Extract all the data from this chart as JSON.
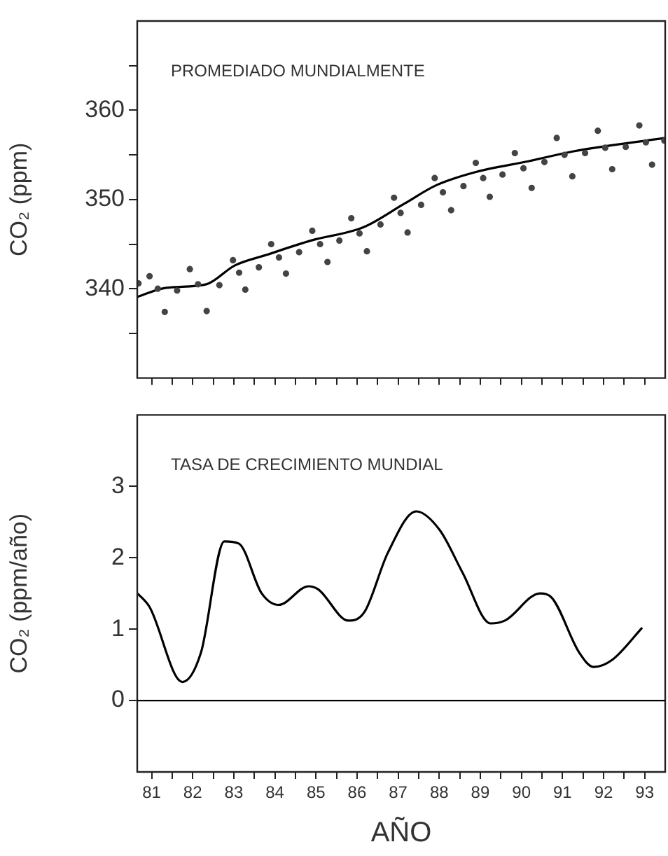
{
  "chart_data": [
    {
      "type": "scatter",
      "ylabel": "CO₂ (ppm)",
      "annotations": [
        "PROMEDIADO MUNDIALMENTE"
      ],
      "tick_labels": "y",
      "grid": false,
      "xlim": [
        80.65,
        93.5
      ],
      "xticks": [
        81,
        {
          "value": 81.5,
          "label": null
        },
        82,
        {
          "value": 82.5,
          "label": null
        },
        83,
        {
          "value": 83.5,
          "label": null
        },
        84,
        {
          "value": 84.5,
          "label": null
        },
        85,
        {
          "value": 85.5,
          "label": null
        },
        86,
        {
          "value": 86.5,
          "label": null
        },
        87,
        {
          "value": 87.5,
          "label": null
        },
        88,
        {
          "value": 88.5,
          "label": null
        },
        89,
        {
          "value": 89.5,
          "label": null
        },
        90,
        {
          "value": 90.5,
          "label": null
        },
        91,
        {
          "value": 91.5,
          "label": null
        },
        92,
        {
          "value": 92.5,
          "label": null
        },
        93
      ],
      "ylim": [
        330,
        370
      ],
      "yticks": [
        {
          "value": 335,
          "label": null
        },
        340,
        {
          "value": 345,
          "label": null
        },
        350,
        {
          "value": 355,
          "label": null
        },
        360,
        {
          "value": 365,
          "label": null
        }
      ],
      "series": [
        {
          "marker": "circle",
          "color": "#444444",
          "x": [
            80.68,
            80.95,
            81.15,
            81.32,
            81.62,
            81.93,
            82.13,
            82.34,
            82.65,
            82.98,
            83.13,
            83.28,
            83.61,
            83.91,
            84.1,
            84.27,
            84.59,
            84.91,
            85.1,
            85.28,
            85.57,
            85.86,
            86.06,
            86.24,
            86.57,
            86.9,
            87.06,
            87.23,
            87.56,
            87.89,
            88.09,
            88.29,
            88.59,
            88.89,
            89.07,
            89.23,
            89.54,
            89.84,
            90.05,
            90.25,
            90.56,
            90.86,
            91.05,
            91.24,
            91.55,
            91.86,
            92.04,
            92.21,
            92.54,
            92.87,
            93.03,
            93.18,
            93.48
          ],
          "values": [
            340.6,
            341.4,
            340.0,
            337.4,
            339.8,
            342.2,
            340.5,
            337.5,
            340.4,
            343.2,
            341.8,
            339.9,
            342.4,
            345.0,
            343.5,
            341.7,
            344.1,
            346.5,
            345.0,
            343.0,
            345.4,
            347.9,
            346.2,
            344.2,
            347.2,
            350.2,
            348.5,
            346.3,
            349.4,
            352.4,
            350.8,
            348.8,
            351.5,
            354.1,
            352.4,
            350.3,
            352.8,
            355.2,
            353.5,
            351.3,
            354.2,
            356.9,
            355.0,
            352.6,
            355.2,
            357.7,
            355.8,
            353.4,
            355.9,
            358.3,
            356.4,
            353.9,
            356.6
          ]
        },
        {
          "type": "line",
          "color": "#000000",
          "x": [
            80.66,
            81.35,
            82.33,
            83.02,
            83.8,
            84.88,
            86.16,
            87.14,
            87.93,
            88.91,
            90.19,
            91.27,
            93.5
          ],
          "values": [
            339.1,
            340.1,
            340.5,
            342.6,
            343.8,
            345.4,
            346.9,
            349.5,
            351.6,
            353.1,
            354.3,
            355.4,
            356.9
          ]
        }
      ]
    },
    {
      "type": "line",
      "ylabel": "CO₂ (ppm/año)",
      "xlabel": "AÑO",
      "annotations": [
        "TASA DE CRECIMIENTO MUNDIAL"
      ],
      "grid": false,
      "xlim": [
        80.65,
        93.5
      ],
      "xticks": [
        81,
        {
          "value": 81.5,
          "label": null
        },
        82,
        {
          "value": 82.5,
          "label": null
        },
        83,
        {
          "value": 83.5,
          "label": null
        },
        84,
        {
          "value": 84.5,
          "label": null
        },
        85,
        {
          "value": 85.5,
          "label": null
        },
        86,
        {
          "value": 86.5,
          "label": null
        },
        87,
        {
          "value": 87.5,
          "label": null
        },
        88,
        {
          "value": 88.5,
          "label": null
        },
        89,
        {
          "value": 89.5,
          "label": null
        },
        90,
        {
          "value": 90.5,
          "label": null
        },
        91,
        {
          "value": 91.5,
          "label": null
        },
        92,
        {
          "value": 92.5,
          "label": null
        },
        93
      ],
      "ylim": [
        -1,
        4
      ],
      "yticks": [
        0,
        1,
        2,
        3
      ],
      "ref_lines": [
        {
          "axis": "y",
          "value": 0,
          "color": "#000000"
        }
      ],
      "series": [
        {
          "color": "#000000",
          "x": [
            80.66,
            80.95,
            81.75,
            82.2,
            82.77,
            83.12,
            83.68,
            84.09,
            84.82,
            85.05,
            85.79,
            86.18,
            86.75,
            87.44,
            88.01,
            88.57,
            89.25,
            89.6,
            90.45,
            90.74,
            91.41,
            91.76,
            92.21,
            92.94
          ],
          "values": [
            1.5,
            1.31,
            0.26,
            0.67,
            2.23,
            2.2,
            1.5,
            1.34,
            1.6,
            1.56,
            1.12,
            1.24,
            2.07,
            2.65,
            2.39,
            1.79,
            1.08,
            1.12,
            1.5,
            1.44,
            0.67,
            0.47,
            0.57,
            1.02
          ]
        }
      ]
    }
  ]
}
